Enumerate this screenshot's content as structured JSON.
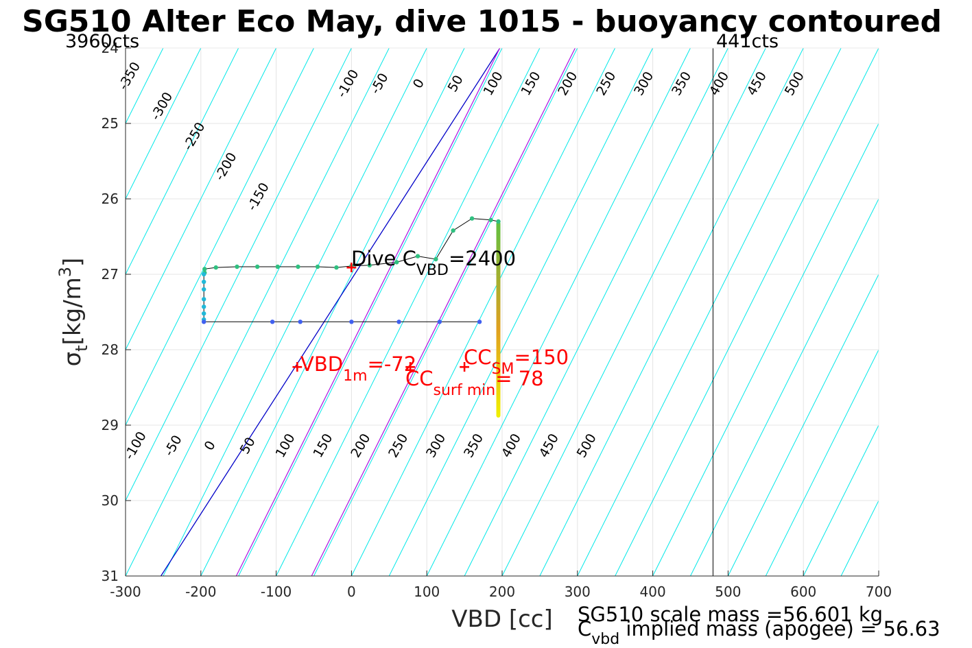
{
  "chart_data": {
    "type": "scatter",
    "title": "SG510 Alter Eco May, dive 1015 - buoyancy contoured",
    "xlabel": "VBD [cc]",
    "ylabel_main": "σ",
    "ylabel_sub": "t",
    "ylabel_units": "[kg/m",
    "ylabel_sup": "3",
    "ylabel_close": "]",
    "xlim": [
      -300,
      700
    ],
    "ylim": [
      24,
      31
    ],
    "y_reversed": true,
    "grid": true,
    "x_ticks": [
      -300,
      -200,
      -100,
      0,
      100,
      200,
      300,
      400,
      500,
      600,
      700
    ],
    "y_ticks": [
      24,
      25,
      26,
      27,
      28,
      29,
      30,
      31
    ],
    "top_left_label": "3960cts",
    "top_right_label": "441cts",
    "limit_line_x": 480,
    "buoyancy_contours": {
      "values": [
        -350,
        -300,
        -250,
        -200,
        -150,
        -100,
        -50,
        0,
        50,
        100,
        150,
        200,
        250,
        300,
        350,
        400,
        450,
        500
      ],
      "vbd_intercept_at_sigma31": [
        -350,
        -300,
        -250,
        -200,
        -150,
        -100,
        -50,
        -253,
        50,
        -153,
        -53,
        200,
        250,
        300,
        350,
        400,
        450,
        500
      ],
      "slope_vbd_per_sigma": 50,
      "colors": {
        "default": "#00e8e8",
        "zero": "#0000c8",
        "purple": "#b020e0"
      },
      "top_labels": [
        {
          "text": "-350",
          "vbd": -290,
          "sigma": 24.4
        },
        {
          "text": "-300",
          "vbd": -247,
          "sigma": 24.8
        },
        {
          "text": "-250",
          "vbd": -204,
          "sigma": 25.2
        },
        {
          "text": "-200",
          "vbd": -162,
          "sigma": 25.6
        },
        {
          "text": "-150",
          "vbd": -119,
          "sigma": 26.0
        },
        {
          "text": "-100",
          "vbd": 0,
          "sigma": 24.5
        },
        {
          "text": "-50",
          "vbd": 42,
          "sigma": 24.5
        },
        {
          "text": "0",
          "vbd": 94,
          "sigma": 24.5
        },
        {
          "text": "50",
          "vbd": 143,
          "sigma": 24.5
        },
        {
          "text": "100",
          "vbd": 193,
          "sigma": 24.5
        },
        {
          "text": "150",
          "vbd": 243,
          "sigma": 24.5
        },
        {
          "text": "200",
          "vbd": 292,
          "sigma": 24.5
        },
        {
          "text": "250",
          "vbd": 343,
          "sigma": 24.5
        },
        {
          "text": "300",
          "vbd": 393,
          "sigma": 24.5
        },
        {
          "text": "350",
          "vbd": 443,
          "sigma": 24.5
        },
        {
          "text": "400",
          "vbd": 493,
          "sigma": 24.5
        },
        {
          "text": "450",
          "vbd": 543,
          "sigma": 24.5
        },
        {
          "text": "500",
          "vbd": 593,
          "sigma": 24.5
        }
      ],
      "bottom_labels": [
        {
          "text": "-100",
          "vbd": -282,
          "sigma": 29.3
        },
        {
          "text": "-50",
          "vbd": -232,
          "sigma": 29.3
        },
        {
          "text": "0",
          "vbd": -183,
          "sigma": 29.3
        },
        {
          "text": "50",
          "vbd": -133,
          "sigma": 29.3
        },
        {
          "text": "100",
          "vbd": -83,
          "sigma": 29.3
        },
        {
          "text": "150",
          "vbd": -33,
          "sigma": 29.3
        },
        {
          "text": "200",
          "vbd": 17,
          "sigma": 29.3
        },
        {
          "text": "250",
          "vbd": 67,
          "sigma": 29.3
        },
        {
          "text": "300",
          "vbd": 117,
          "sigma": 29.3
        },
        {
          "text": "350",
          "vbd": 167,
          "sigma": 29.3
        },
        {
          "text": "400",
          "vbd": 217,
          "sigma": 29.3
        },
        {
          "text": "450",
          "vbd": 267,
          "sigma": 29.3
        },
        {
          "text": "500",
          "vbd": 317,
          "sigma": 29.3
        }
      ]
    },
    "series": [
      {
        "name": "dive",
        "color": "#30c080",
        "x": [
          -195,
          -195,
          -180,
          -152,
          -125,
          -98,
          -71,
          -45,
          -20,
          0,
          24,
          60,
          88,
          112,
          135,
          160,
          185,
          195
        ],
        "y": [
          26.98,
          26.93,
          26.91,
          26.9,
          26.9,
          26.9,
          26.9,
          26.9,
          26.91,
          26.89,
          26.88,
          26.84,
          26.76,
          26.8,
          26.42,
          26.26,
          26.28,
          26.3
        ]
      },
      {
        "name": "bottom",
        "color": "#20b8d8",
        "x": [
          -196,
          -196,
          -196,
          -196,
          -196,
          -196,
          -196
        ],
        "y": [
          27.0,
          27.1,
          27.2,
          27.33,
          27.43,
          27.52,
          27.6
        ]
      },
      {
        "name": "climb",
        "color": "#4060f0",
        "x": [
          -196,
          -105,
          -68,
          0,
          63,
          117,
          170
        ],
        "y": [
          27.63,
          27.63,
          27.63,
          27.63,
          27.63,
          27.63,
          27.63
        ]
      },
      {
        "name": "surface",
        "color_top": "#60c040",
        "color_mid": "#e0a020",
        "color_bottom": "#f0f000",
        "x_const": 195,
        "y_range": [
          26.3,
          28.9
        ]
      }
    ],
    "markers": [
      {
        "text": "+",
        "vbd": 0,
        "sigma": 26.9,
        "color": "#ff0000"
      },
      {
        "text": "+",
        "vbd": -72,
        "sigma": 28.22,
        "color": "#ff0000"
      },
      {
        "text": "+",
        "vbd": 150,
        "sigma": 28.22,
        "color": "#ff0000"
      },
      {
        "text": "+",
        "vbd": 78,
        "sigma": 28.22,
        "color": "#ff0000"
      }
    ],
    "annotations": {
      "dive_cvbd": {
        "main": "Dive C",
        "sub": "VBD",
        "tail": "=2400",
        "color": "#000000"
      },
      "vbd_1m": {
        "main": "VBD",
        "sub": "1m",
        "tail": "=-72",
        "color": "#ff0000"
      },
      "cc_sm": {
        "main": "CC",
        "sub": "SM",
        "tail": "=150",
        "color": "#ff0000"
      },
      "cc_surf": {
        "main": "CC",
        "sub": "surf min",
        "tail": "= 78",
        "color": "#ff0000"
      }
    },
    "footer": {
      "scale_mass": "SG510 scale mass =56.601 kg",
      "cvbd_main": "C",
      "cvbd_sub": "vbd",
      "cvbd_tail": " implied mass (apogee) = 56.63"
    }
  }
}
